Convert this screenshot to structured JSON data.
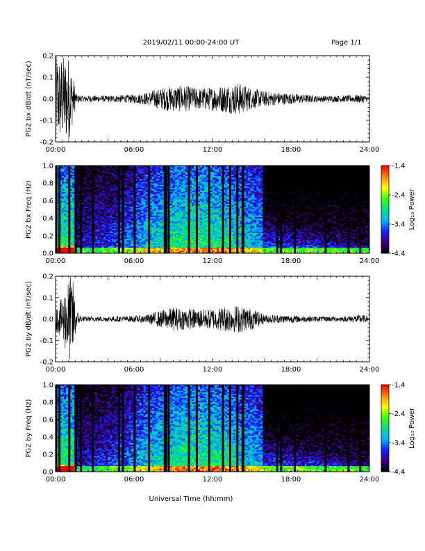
{
  "header": {
    "title": "2019/02/11  00:00-24:00 UT",
    "page": "Page 1/1"
  },
  "x_axis": {
    "label": "Universal Time (hh:mm)",
    "ticks": [
      "00:00",
      "06:00",
      "12:00",
      "18:00",
      "24:00"
    ],
    "range_hours": [
      0,
      24
    ]
  },
  "colorbar": {
    "label": "Log₁₀ Power",
    "ticks": [
      "-1.4",
      "-2.4",
      "-3.4",
      "-4.4"
    ],
    "range": [
      -4.4,
      -1.4
    ],
    "colors": [
      "#000000",
      "#3a007a",
      "#1a1aff",
      "#00b4ff",
      "#00e08a",
      "#33ff00",
      "#ffff00",
      "#ff8800",
      "#ff0000"
    ]
  },
  "colors": {
    "trace": "#000000",
    "background": "#ffffff",
    "dropout": "#000000"
  },
  "chart_data": [
    {
      "type": "line",
      "ylabel": "PG2 bx dB/dt (nT/sec)",
      "ylim": [
        -0.2,
        0.2
      ],
      "yticks": [
        "0.2",
        "0.1",
        "0.0",
        "-0.1",
        "-0.2"
      ],
      "xlim": [
        0,
        24
      ],
      "envelope_hours": [
        0,
        0.5,
        1,
        1.3,
        1.6,
        2,
        4,
        6,
        7,
        8,
        9,
        10,
        11,
        12,
        13,
        14,
        15,
        16,
        17,
        18,
        20,
        22,
        23.5,
        24
      ],
      "envelope_amplitude": [
        0.2,
        0.2,
        0.2,
        0.12,
        0.02,
        0.015,
        0.015,
        0.02,
        0.03,
        0.05,
        0.06,
        0.06,
        0.05,
        0.055,
        0.065,
        0.075,
        0.05,
        0.035,
        0.03,
        0.025,
        0.015,
        0.015,
        0.02,
        0.01
      ]
    },
    {
      "type": "heatmap",
      "ylabel": "PG2 bx Freq (Hz)",
      "ylim": [
        0,
        1
      ],
      "yticks": [
        "1.0",
        "0.8",
        "0.6",
        "0.4",
        "0.2",
        "0.0"
      ],
      "xlim": [
        0,
        24
      ],
      "zlim": [
        -4.4,
        -1.4
      ],
      "dropout_hours": [
        0.05,
        0.3,
        1.05,
        1.55,
        1.95,
        2.85,
        4.85,
        5.15,
        6.05,
        7.15,
        8.35,
        8.45,
        8.65,
        10.2,
        10.8,
        11.75,
        12.8,
        13.35,
        13.9,
        14.3,
        14.35,
        16.95,
        17.25,
        18.3,
        20.65,
        22.4,
        23.3
      ]
    },
    {
      "type": "line",
      "ylabel": "PG2 by dB/dt (nT/sec)",
      "ylim": [
        -0.2,
        0.2
      ],
      "yticks": [
        "0.2",
        "0.1",
        "0.0",
        "-0.1",
        "-0.2"
      ],
      "xlim": [
        0,
        24
      ],
      "envelope_hours": [
        0,
        0.5,
        1,
        1.3,
        1.6,
        2,
        4,
        6,
        7,
        8,
        9,
        10,
        11,
        12,
        13,
        14,
        15,
        16,
        17,
        18,
        20,
        22,
        23.5,
        24
      ],
      "envelope_amplitude": [
        0.05,
        0.1,
        0.2,
        0.2,
        0.04,
        0.012,
        0.012,
        0.015,
        0.02,
        0.04,
        0.055,
        0.05,
        0.045,
        0.05,
        0.06,
        0.065,
        0.05,
        0.02,
        0.02,
        0.018,
        0.012,
        0.012,
        0.02,
        0.01
      ]
    },
    {
      "type": "heatmap",
      "ylabel": "PG2 by Freq (Hz)",
      "ylim": [
        0,
        1
      ],
      "yticks": [
        "1.0",
        "0.8",
        "0.6",
        "0.4",
        "0.2",
        "0.0"
      ],
      "xlim": [
        0,
        24
      ],
      "zlim": [
        -4.4,
        -1.4
      ],
      "dropout_hours": [
        0.05,
        0.3,
        1.05,
        1.55,
        1.95,
        2.85,
        4.85,
        5.15,
        6.05,
        7.15,
        8.35,
        8.45,
        8.65,
        10.2,
        10.8,
        11.75,
        12.8,
        13.35,
        13.9,
        14.3,
        14.35,
        16.95,
        17.25,
        18.3,
        20.65,
        22.4,
        23.3
      ]
    }
  ]
}
